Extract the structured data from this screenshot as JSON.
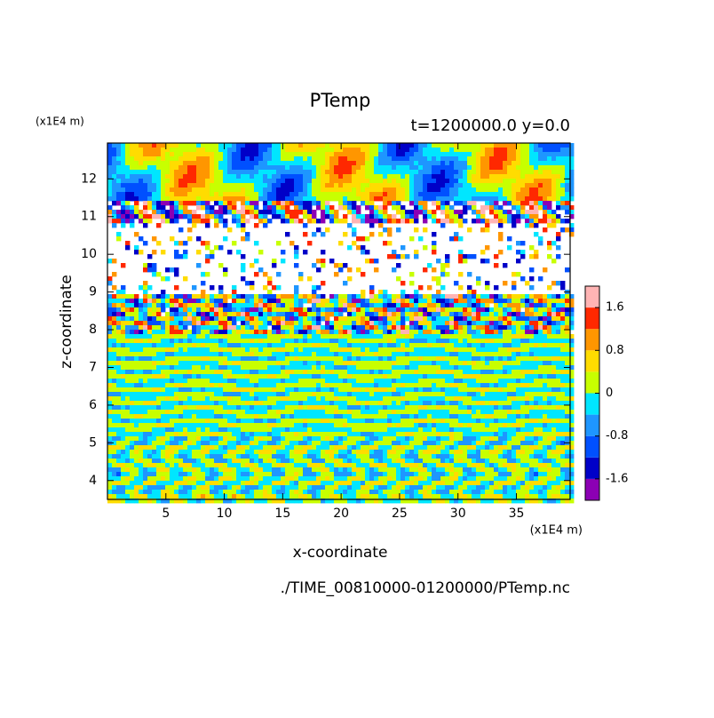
{
  "chart_data": {
    "type": "contour",
    "title": "PTemp",
    "subtitle": "t=1200000.0 y=0.0",
    "x_label": "x-coordinate",
    "y_label": "z-coordinate",
    "x_unit": "(x1E4 m)",
    "y_unit": "(x1E4 m)",
    "source": "./TIME_00810000-01200000/PTemp.nc",
    "xlim": [
      0,
      39.6
    ],
    "xticks": [
      5,
      10,
      15,
      20,
      25,
      30,
      35
    ],
    "ylim": [
      3.5,
      12.95
    ],
    "yticks": [
      4,
      5,
      6,
      7,
      8,
      9,
      10,
      11,
      12
    ],
    "clim": [
      -2,
      2
    ],
    "cticks": [
      -1.6,
      -0.8,
      0,
      0.8,
      1.6
    ],
    "colors": [
      "#8c00b4",
      "#0000c8",
      "#0050ff",
      "#1e96ff",
      "#00e6ff",
      "#c8ff00",
      "#ffdc00",
      "#ff9600",
      "#ff2800",
      "#ffb4b4"
    ]
  }
}
